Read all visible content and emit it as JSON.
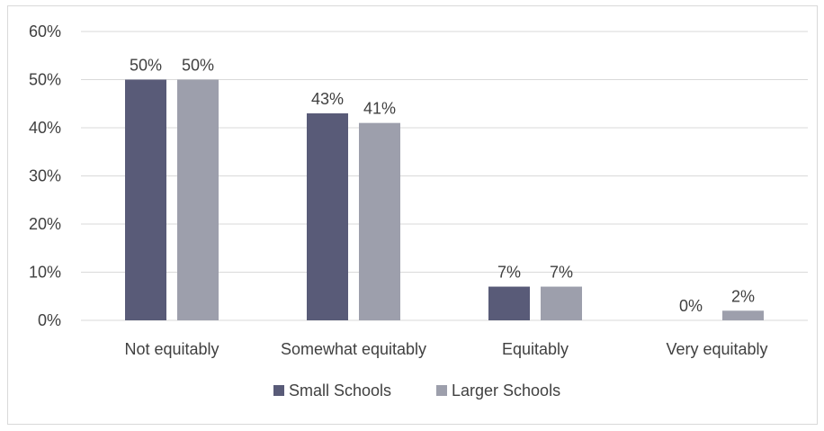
{
  "chart_data": {
    "type": "bar",
    "title": "",
    "xlabel": "",
    "ylabel": "",
    "categories": [
      "Not equitably",
      "Somewhat equitably",
      "Equitably",
      "Very equitably"
    ],
    "series": [
      {
        "name": "Small Schools",
        "color": "#595b78",
        "values": [
          50,
          43,
          7,
          0
        ],
        "labels": [
          "50%",
          "43%",
          "7%",
          "0%"
        ]
      },
      {
        "name": "Larger Schools",
        "color": "#9d9fac",
        "values": [
          50,
          41,
          7,
          2
        ],
        "labels": [
          "50%",
          "41%",
          "7%",
          "2%"
        ]
      }
    ],
    "ylim": [
      0,
      60
    ],
    "yticks": [
      0,
      10,
      20,
      30,
      40,
      50,
      60
    ],
    "ytick_labels": [
      "0%",
      "10%",
      "20%",
      "30%",
      "40%",
      "50%",
      "60%"
    ],
    "grid": true,
    "gridline_color": "#d9d9d9",
    "legend_position": "bottom"
  }
}
